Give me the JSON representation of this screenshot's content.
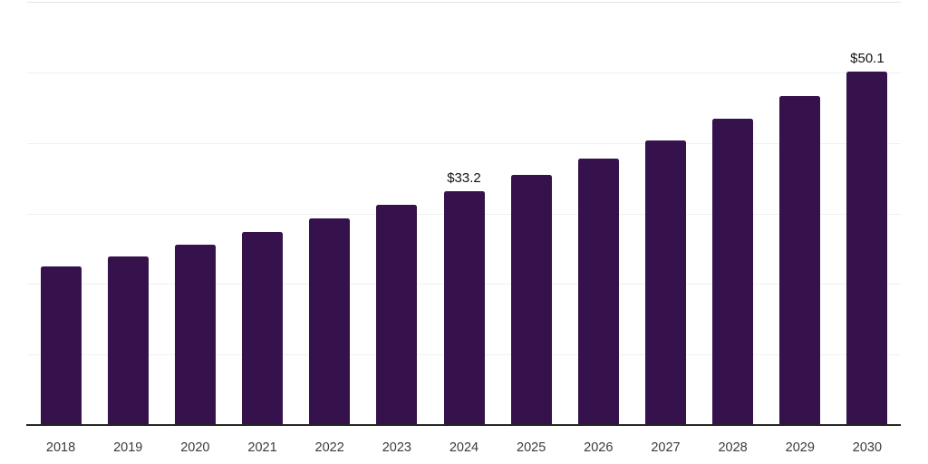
{
  "chart_data": {
    "type": "bar",
    "title": "",
    "xlabel": "",
    "ylabel": "",
    "categories": [
      "2018",
      "2019",
      "2020",
      "2021",
      "2022",
      "2023",
      "2024",
      "2025",
      "2026",
      "2027",
      "2028",
      "2029",
      "2030"
    ],
    "values": [
      22.5,
      23.9,
      25.6,
      27.4,
      29.3,
      31.2,
      33.2,
      35.4,
      37.8,
      40.3,
      43.4,
      46.6,
      50.1
    ],
    "data_labels": {
      "2024": "$33.2",
      "2030": "$50.1"
    },
    "ylim": [
      0,
      60
    ],
    "gridline_step": 10,
    "grid": "horizontal-only",
    "y_axis_tick_labels_visible": false,
    "legend": "none",
    "colors": {
      "bar": "#36124D",
      "gridline": "#F0F0F0",
      "top_gridline": "#E5E5E5",
      "axis_line": "#262626",
      "x_tick_label": "#3A3A3A",
      "value_label": "#121212",
      "background": "#FFFFFF"
    }
  }
}
